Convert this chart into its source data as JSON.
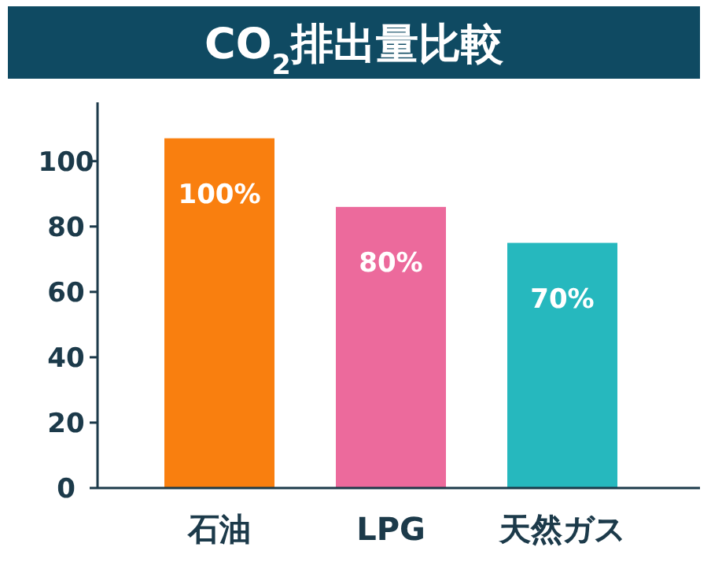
{
  "chart_data": {
    "type": "bar",
    "title": "CO$_{2}$排出量比較",
    "categories": [
      "石油",
      "LPG",
      "天然ガス"
    ],
    "values": [
      107,
      86,
      75
    ],
    "colors": [
      "#f97f0f",
      "#ec6a9c",
      "#26b8be"
    ],
    "annotations": [
      {
        "text": "100%",
        "x": "石油",
        "y": 107
      },
      {
        "text": "80%",
        "x": "LPG",
        "y": 86
      },
      {
        "text": "70%",
        "x": "天然ガス",
        "y": 75
      }
    ],
    "ylim": [
      0,
      118
    ],
    "yticks": [
      0,
      20,
      40,
      60,
      80,
      100
    ]
  }
}
